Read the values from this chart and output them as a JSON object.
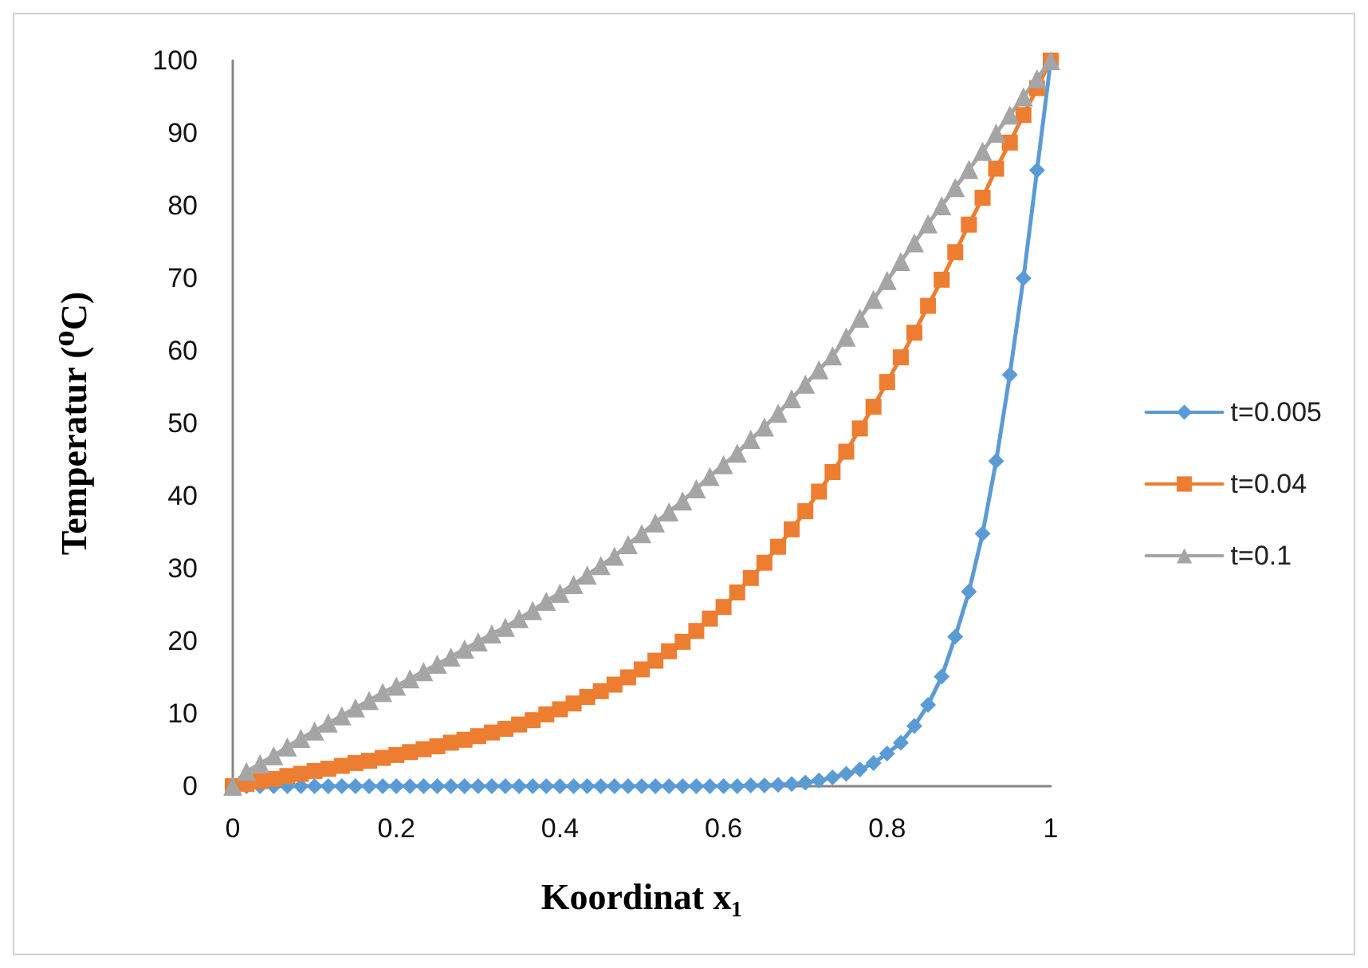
{
  "chart_data": {
    "type": "line",
    "xlabel": "Koordinat x₁",
    "ylabel": "Temperatur (⁰C)",
    "x": [
      0,
      0.0167,
      0.0333,
      0.05,
      0.0667,
      0.0833,
      0.1,
      0.1167,
      0.1333,
      0.15,
      0.1667,
      0.1833,
      0.2,
      0.2167,
      0.2333,
      0.25,
      0.2667,
      0.2833,
      0.3,
      0.3167,
      0.3333,
      0.35,
      0.3667,
      0.3833,
      0.4,
      0.4167,
      0.4333,
      0.45,
      0.4667,
      0.4833,
      0.5,
      0.5167,
      0.5333,
      0.55,
      0.5667,
      0.5833,
      0.6,
      0.6167,
      0.6333,
      0.65,
      0.6667,
      0.6833,
      0.7,
      0.7167,
      0.7333,
      0.75,
      0.7667,
      0.7833,
      0.8,
      0.8167,
      0.8333,
      0.85,
      0.8667,
      0.8833,
      0.9,
      0.9167,
      0.9333,
      0.95,
      0.9667,
      0.9833,
      1
    ],
    "series": [
      {
        "name": "t=0.005",
        "color": "#5b9bd5",
        "marker": "diamond",
        "values": [
          0,
          0,
          0,
          0,
          0,
          0,
          0,
          0,
          0,
          0,
          0,
          0,
          0,
          0,
          0,
          0,
          0,
          0,
          0,
          0,
          0,
          0,
          0,
          0,
          0,
          0,
          0,
          0,
          0,
          0,
          0,
          0,
          0,
          0,
          0,
          0,
          0,
          0,
          0.1,
          0.1,
          0.2,
          0.3,
          0.5,
          0.8,
          1.2,
          1.7,
          2.3,
          3.2,
          4.5,
          6.0,
          8.3,
          11.2,
          15.1,
          20.6,
          26.8,
          34.8,
          44.8,
          56.7,
          70.0,
          84.9,
          100
        ]
      },
      {
        "name": "t=0.04",
        "color": "#ed7d31",
        "marker": "square",
        "values": [
          0,
          0.3,
          0.7,
          1.0,
          1.4,
          1.7,
          2.1,
          2.4,
          2.8,
          3.2,
          3.5,
          3.9,
          4.3,
          4.7,
          5.1,
          5.5,
          6.0,
          6.4,
          6.9,
          7.4,
          7.9,
          8.5,
          9.1,
          9.9,
          10.6,
          11.4,
          12.3,
          13.1,
          14.0,
          15.0,
          16.1,
          17.3,
          18.6,
          19.9,
          21.4,
          23.1,
          24.7,
          26.7,
          28.7,
          30.8,
          33.0,
          35.4,
          37.9,
          40.6,
          43.3,
          46.1,
          49.3,
          52.3,
          55.7,
          59.1,
          62.5,
          66.2,
          69.8,
          73.6,
          77.4,
          81.1,
          85.1,
          88.7,
          92.5,
          96.2,
          100
        ]
      },
      {
        "name": "t=0.1",
        "color": "#a5a5a5",
        "marker": "triangle",
        "values": [
          0,
          2.0,
          3.1,
          4.2,
          5.4,
          6.6,
          7.6,
          8.7,
          9.7,
          10.8,
          11.8,
          12.9,
          13.8,
          14.8,
          15.8,
          16.8,
          17.8,
          18.9,
          19.9,
          21.0,
          21.9,
          23.1,
          24.2,
          25.5,
          26.6,
          27.8,
          29.1,
          30.4,
          31.7,
          33.3,
          34.8,
          36.3,
          37.8,
          39.3,
          41.0,
          42.7,
          44.3,
          45.9,
          47.8,
          49.5,
          51.4,
          53.4,
          55.4,
          57.4,
          59.3,
          61.9,
          64.5,
          67.1,
          69.7,
          72.3,
          74.9,
          77.5,
          80.0,
          82.5,
          85.0,
          87.5,
          90.0,
          92.5,
          95.0,
          97.5,
          100
        ]
      }
    ],
    "xlim": [
      0,
      1
    ],
    "xticks": [
      0,
      0.2,
      0.4,
      0.6,
      0.8,
      1
    ],
    "ylim": [
      0,
      100
    ],
    "yticks": [
      0,
      10,
      20,
      30,
      40,
      50,
      60,
      70,
      80,
      90,
      100
    ],
    "grid": false,
    "legend": "right",
    "line_style": "solid"
  }
}
